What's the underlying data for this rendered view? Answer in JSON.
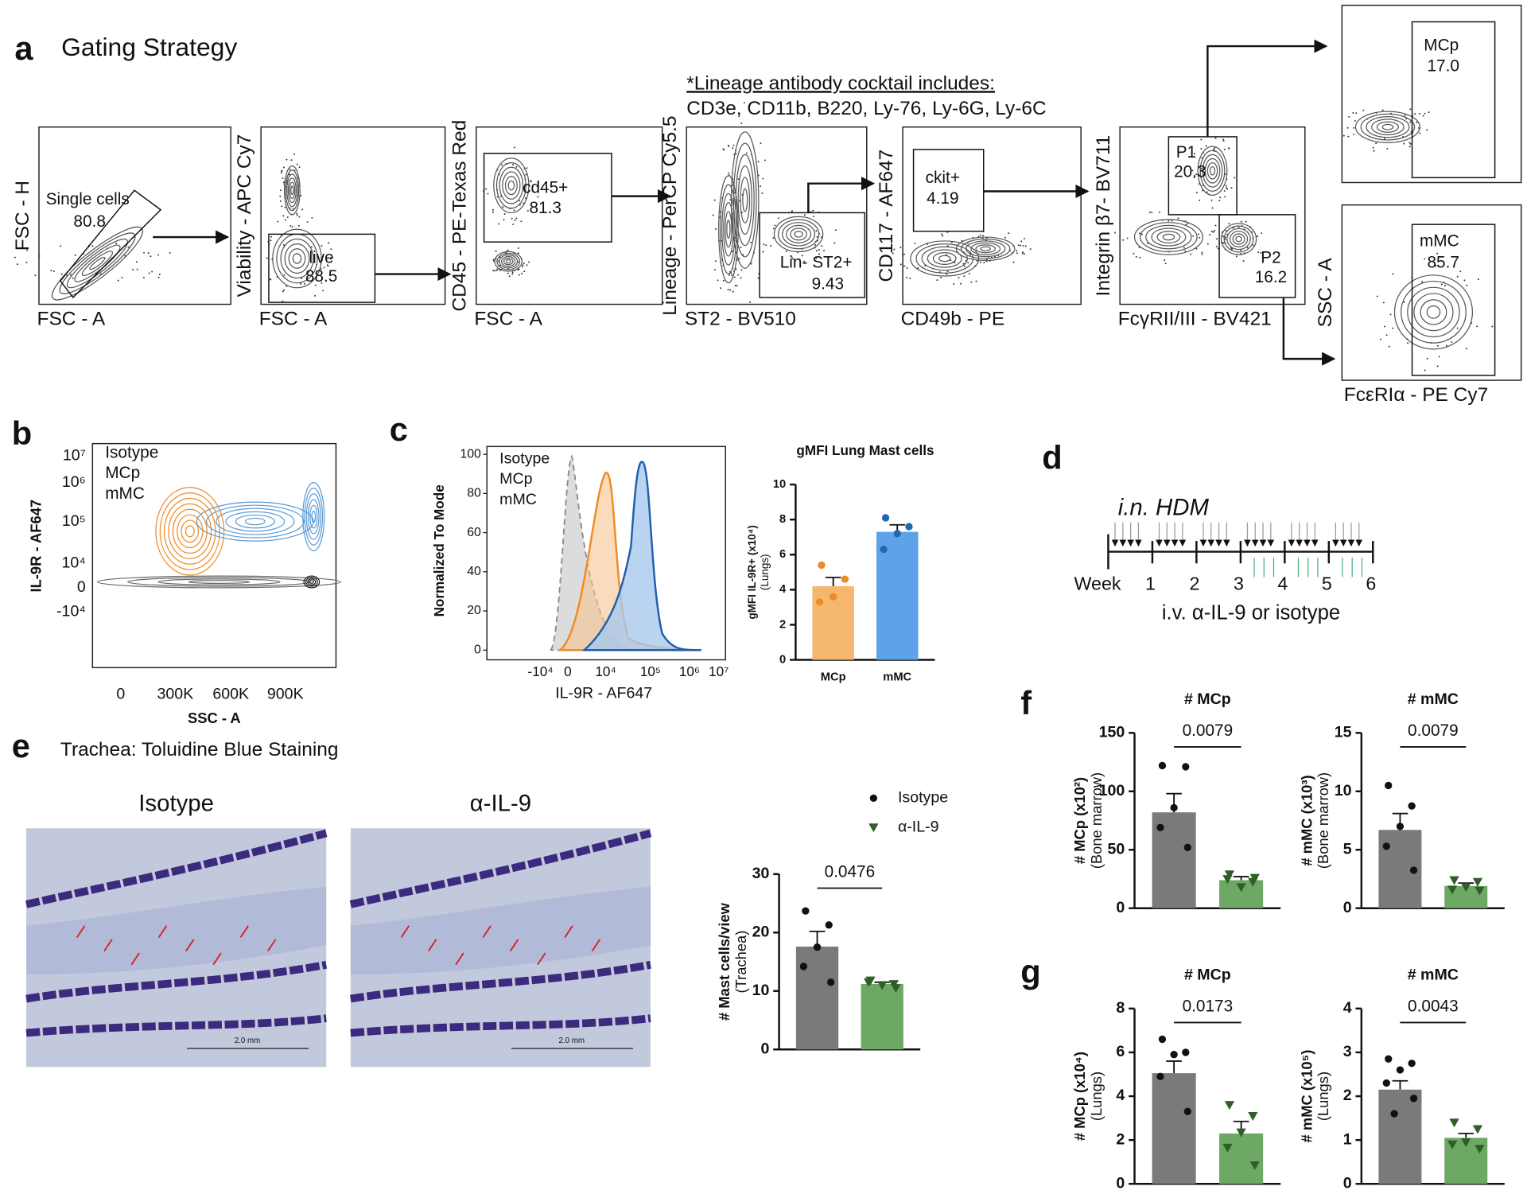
{
  "figure": {
    "a": {
      "label": "a",
      "title": "Gating Strategy",
      "note_title": "*Lineage antibody cocktail includes:",
      "note_text": "CD3e, CD11b, B220, Ly-76, Ly-6G, Ly-6C",
      "plots": [
        {
          "y_label": "FSC - H",
          "x_label": "FSC - A",
          "gates": [
            {
              "name": "Single cells",
              "value": "80.8"
            }
          ]
        },
        {
          "y_label": "Viability - APC Cy7",
          "x_label": "FSC - A",
          "gates": [
            {
              "name": "live",
              "value": "88.5"
            }
          ]
        },
        {
          "y_label": "CD45 - PE-Texas Red",
          "x_label": "FSC - A",
          "gates": [
            {
              "name": "cd45+",
              "value": "81.3"
            }
          ]
        },
        {
          "y_label": "Lineage - PerCP Cy5.5",
          "x_label": "ST2 - BV510",
          "gates": [
            {
              "name": "Lin- ST2+",
              "value": "9.43"
            }
          ]
        },
        {
          "y_label": "CD117 - AF647",
          "x_label": "CD49b - PE",
          "gates": [
            {
              "name": "ckit+",
              "value": "4.19"
            }
          ]
        },
        {
          "y_label": "Integrin β7- BV711",
          "x_label": "FcγRII/III - BV421",
          "gates": [
            {
              "name": "P1",
              "value": "20.3"
            },
            {
              "name": "P2",
              "value": "16.2"
            }
          ]
        },
        {
          "gates": [
            {
              "name": "MCp",
              "value": "17.0"
            }
          ]
        },
        {
          "y_label": "SSC - A",
          "x_label": "FcεRIα - PE Cy7",
          "gates": [
            {
              "name": "mMC",
              "value": "85.7"
            }
          ]
        }
      ]
    },
    "b": {
      "label": "b",
      "y_label": "IL-9R - AF647",
      "x_label": "SSC - A",
      "yticks": [
        "10⁷",
        "10⁶",
        "10⁵",
        "10⁴",
        "0",
        "-10⁴"
      ],
      "xticks": [
        "0",
        "300K",
        "600K",
        "900K"
      ],
      "legend": [
        {
          "name": "Isotype",
          "color": "#6b6b6b"
        },
        {
          "name": "MCp",
          "color": "#f08a24"
        },
        {
          "name": "mMC",
          "color": "#5b9bd5"
        }
      ]
    },
    "c": {
      "label": "c",
      "y_label": "Normalized To Mode",
      "x_label": "IL-9R - AF647",
      "ylim": [
        0,
        104
      ],
      "yticks": [
        0,
        20,
        40,
        60,
        80,
        100
      ],
      "xticks": [
        "-10⁴",
        "0",
        "10⁴",
        "10⁵",
        "10⁶",
        "10⁷"
      ],
      "legend": [
        {
          "name": "Isotype",
          "color": "#8a8a8a"
        },
        {
          "name": "MCp",
          "color": "#f08a24"
        },
        {
          "name": "mMC",
          "color": "#5b9bd5"
        }
      ]
    },
    "d": {
      "label": "d",
      "title": "i.n. HDM",
      "week_label": "Week",
      "weeks": [
        1,
        2,
        3,
        4,
        5,
        6
      ],
      "treatment": "i.v. α-IL-9 or isotype"
    },
    "e": {
      "label": "e",
      "title": "Trachea: Toluidine Blue Staining",
      "images": [
        {
          "title": "Isotype",
          "scale": "2.0 mm"
        },
        {
          "title": "α-IL-9",
          "scale": "2.0 mm"
        }
      ]
    },
    "f": {
      "label": "f"
    },
    "g": {
      "label": "g"
    }
  },
  "chart_data": [
    {
      "type": "bar",
      "title": "gMFI Lung Mast cells",
      "ylabel": [
        "gMFI IL-9R+ (x10⁴)",
        "(Lungs)"
      ],
      "categories": [
        "MCp",
        "mMC"
      ],
      "values": [
        4.2,
        7.3
      ],
      "errors": [
        0.5,
        0.4
      ],
      "points": [
        [
          5.4,
          4.6,
          3.6,
          3.3
        ],
        [
          8.1,
          7.6,
          7.2,
          6.3
        ]
      ],
      "colors": [
        "#f5b66e",
        "#5ea3ea"
      ],
      "point_colors": [
        "#ee8a2a",
        "#2466b0"
      ],
      "markers": [
        "circle",
        "circle"
      ],
      "ylim": [
        0,
        10
      ],
      "yticks": [
        0,
        2,
        4,
        6,
        8,
        10
      ]
    },
    {
      "type": "bar",
      "ylabel": [
        "# Mast cells/view",
        "(Trachea)"
      ],
      "legend": [
        "Isotype",
        "α-IL-9"
      ],
      "values": [
        17.6,
        11.2
      ],
      "errors": [
        2.6,
        0.3
      ],
      "points": [
        [
          23.7,
          21.3,
          17.5,
          14.2,
          11.5
        ],
        [
          11.8,
          11.2,
          11.0,
          11.5,
          10.5
        ]
      ],
      "colors": [
        "#7a7a7a",
        "#6ea865"
      ],
      "point_colors": [
        "#111111",
        "#2f5e26"
      ],
      "markers": [
        "circle",
        "triangle"
      ],
      "ylim": [
        0,
        30
      ],
      "yticks": [
        0,
        10,
        20,
        30
      ],
      "p_value": "0.0476"
    },
    {
      "type": "bar",
      "title": "# MCp",
      "ylabel": [
        "# MCp (x10²)",
        "(Bone marrow)"
      ],
      "values": [
        82,
        24
      ],
      "errors": [
        16,
        3
      ],
      "points": [
        [
          122,
          121,
          86,
          69,
          52
        ],
        [
          29,
          22.5,
          18,
          25,
          26
        ]
      ],
      "colors": [
        "#7a7a7a",
        "#6ea865"
      ],
      "point_colors": [
        "#111111",
        "#2f5e26"
      ],
      "markers": [
        "circle",
        "triangle"
      ],
      "ylim": [
        0,
        150
      ],
      "yticks": [
        0,
        50,
        100,
        150
      ],
      "p_value": "0.0079"
    },
    {
      "type": "bar",
      "title": "# mMC",
      "ylabel": [
        "# mMC (x10³)",
        "(Bone marrow)"
      ],
      "values": [
        6.7,
        1.9
      ],
      "errors": [
        1.4,
        0.25
      ],
      "points": [
        [
          10.5,
          8.75,
          7.0,
          5.3,
          3.25
        ],
        [
          2.4,
          2.25,
          1.8,
          1.6,
          1.5
        ]
      ],
      "colors": [
        "#7a7a7a",
        "#6ea865"
      ],
      "point_colors": [
        "#111111",
        "#2f5e26"
      ],
      "markers": [
        "circle",
        "triangle"
      ],
      "ylim": [
        0,
        15
      ],
      "yticks": [
        0,
        5,
        10,
        15
      ],
      "p_value": "0.0079"
    },
    {
      "type": "bar",
      "title": "# MCp",
      "ylabel": [
        "# MCp (x10⁴)",
        "(Lungs)"
      ],
      "values": [
        5.05,
        2.3
      ],
      "errors": [
        0.55,
        0.55
      ],
      "points": [
        [
          6.6,
          6.0,
          5.9,
          4.9,
          3.3
        ],
        [
          3.6,
          3.1,
          2.35,
          1.65,
          0.85
        ]
      ],
      "colors": [
        "#7a7a7a",
        "#6ea865"
      ],
      "point_colors": [
        "#111111",
        "#2f5e26"
      ],
      "markers": [
        "circle",
        "triangle"
      ],
      "ylim": [
        0,
        8
      ],
      "yticks": [
        0,
        2,
        4,
        6,
        8
      ],
      "p_value": "0.0173"
    },
    {
      "type": "bar",
      "title": "# mMC",
      "ylabel": [
        "# mMC (x10⁵)",
        "(Lungs)"
      ],
      "values": [
        2.15,
        1.05
      ],
      "errors": [
        0.2,
        0.1
      ],
      "points": [
        [
          2.85,
          2.75,
          2.6,
          2.3,
          1.95,
          1.6
        ],
        [
          1.4,
          1.25,
          0.95,
          0.9,
          0.8
        ]
      ],
      "colors": [
        "#7a7a7a",
        "#6ea865"
      ],
      "point_colors": [
        "#111111",
        "#2f5e26"
      ],
      "markers": [
        "circle",
        "triangle"
      ],
      "ylim": [
        0,
        4
      ],
      "yticks": [
        0,
        1,
        2,
        3,
        4
      ],
      "p_value": "0.0043"
    }
  ]
}
